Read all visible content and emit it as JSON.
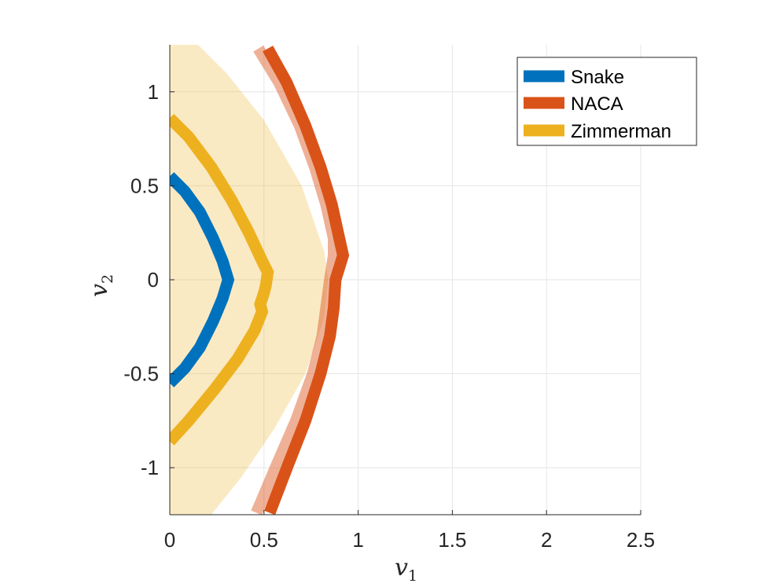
{
  "chart_data": {
    "type": "line",
    "title": "",
    "xlabel": "v",
    "xlabel_sub": "1",
    "ylabel": "v",
    "ylabel_sub": "2",
    "xlim": [
      0,
      2.5
    ],
    "ylim": [
      -1.25,
      1.25
    ],
    "grid": true,
    "legend_position": "top-right",
    "xticks": [
      0,
      0.5,
      1,
      1.5,
      2,
      2.5
    ],
    "xtick_labels": [
      "0",
      "0.5",
      "1",
      "1.5",
      "2",
      "2.5"
    ],
    "yticks": [
      1,
      0.5,
      0,
      -0.5,
      -1
    ],
    "ytick_labels": [
      "1",
      "0.5",
      "0",
      "-0.5",
      "-1"
    ],
    "shaded_region": {
      "name": "Zimmerman envelope",
      "color": "#EDB120",
      "opacity": 0.27,
      "outer_boundary": [
        [
          0,
          1.25
        ],
        [
          0.15,
          1.25
        ],
        [
          0.3,
          1.1
        ],
        [
          0.5,
          0.85
        ],
        [
          0.7,
          0.5
        ],
        [
          0.82,
          0.15
        ],
        [
          0.84,
          0.0
        ],
        [
          0.82,
          -0.2
        ],
        [
          0.72,
          -0.5
        ],
        [
          0.55,
          -0.8
        ],
        [
          0.38,
          -1.05
        ],
        [
          0.22,
          -1.25
        ],
        [
          0,
          -1.25
        ]
      ]
    },
    "series": [
      {
        "name": "Snake",
        "color": "#0072BD",
        "points": [
          [
            0,
            0.55
          ],
          [
            0.08,
            0.47
          ],
          [
            0.16,
            0.36
          ],
          [
            0.23,
            0.22
          ],
          [
            0.28,
            0.1
          ],
          [
            0.31,
            0.0
          ],
          [
            0.28,
            -0.1
          ],
          [
            0.23,
            -0.22
          ],
          [
            0.16,
            -0.36
          ],
          [
            0.08,
            -0.47
          ],
          [
            0,
            -0.55
          ]
        ]
      },
      {
        "name": "NACA",
        "color": "#D95319",
        "points": [
          [
            0.52,
            1.23
          ],
          [
            0.62,
            1.05
          ],
          [
            0.72,
            0.82
          ],
          [
            0.8,
            0.6
          ],
          [
            0.86,
            0.4
          ],
          [
            0.9,
            0.22
          ],
          [
            0.92,
            0.13
          ],
          [
            0.88,
            0.0
          ],
          [
            0.87,
            -0.15
          ],
          [
            0.85,
            -0.3
          ],
          [
            0.8,
            -0.5
          ],
          [
            0.72,
            -0.75
          ],
          [
            0.63,
            -0.98
          ],
          [
            0.53,
            -1.24
          ]
        ],
        "shadow_points": [
          [
            0.47,
            1.23
          ],
          [
            0.58,
            1.05
          ],
          [
            0.69,
            0.82
          ],
          [
            0.77,
            0.6
          ],
          [
            0.83,
            0.4
          ],
          [
            0.87,
            0.22
          ],
          [
            0.87,
            0.13
          ],
          [
            0.85,
            0.0
          ],
          [
            0.83,
            -0.15
          ],
          [
            0.81,
            -0.3
          ],
          [
            0.76,
            -0.5
          ],
          [
            0.67,
            -0.75
          ],
          [
            0.57,
            -0.98
          ],
          [
            0.46,
            -1.24
          ]
        ]
      },
      {
        "name": "Zimmerman",
        "color": "#EDB120",
        "points": [
          [
            0,
            0.86
          ],
          [
            0.1,
            0.76
          ],
          [
            0.22,
            0.6
          ],
          [
            0.33,
            0.42
          ],
          [
            0.42,
            0.25
          ],
          [
            0.49,
            0.1
          ],
          [
            0.52,
            0.04
          ],
          [
            0.51,
            -0.03
          ],
          [
            0.5,
            -0.07
          ],
          [
            0.48,
            -0.13
          ],
          [
            0.49,
            -0.17
          ],
          [
            0.45,
            -0.27
          ],
          [
            0.36,
            -0.42
          ],
          [
            0.24,
            -0.58
          ],
          [
            0.1,
            -0.75
          ],
          [
            0,
            -0.86
          ]
        ]
      }
    ]
  }
}
